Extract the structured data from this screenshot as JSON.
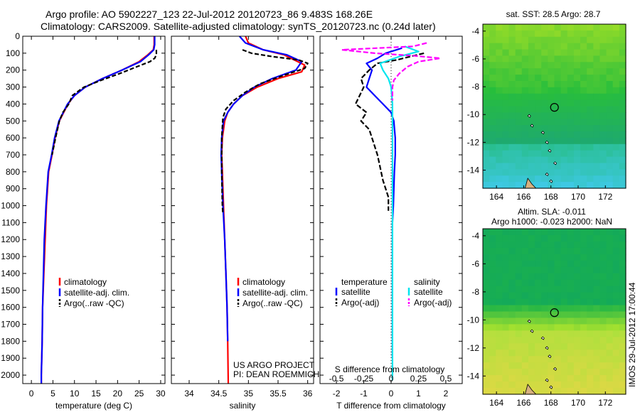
{
  "header": {
    "line1": "Argo profile: AO 5902227_123 22-Jul-2012 20120723_86 9.483S 168.26E",
    "line2": "Climatology: CARS2009. Satellite-adjusted climatology: synTS_20120723.nc (0.24d later)"
  },
  "colors": {
    "climatology": "#ff0000",
    "satellite": "#0000ff",
    "argo": "#000000",
    "sat_salinity": "#00e5ee",
    "argo_salinity": "#ff00ff"
  },
  "depth_axis": {
    "ylim": [
      0,
      2050
    ],
    "ticks": [
      "0",
      "100",
      "200",
      "300",
      "400",
      "500",
      "600",
      "700",
      "800",
      "900",
      "1000",
      "1100",
      "1200",
      "1300",
      "1400",
      "1500",
      "1600",
      "1700",
      "1800",
      "1900",
      "2000"
    ]
  },
  "chart_data": [
    {
      "type": "line",
      "id": "temperature",
      "xlabel": "temperature (deg C)",
      "xlim": [
        -2,
        31
      ],
      "xticks": [
        0,
        5,
        10,
        15,
        20,
        25,
        30
      ],
      "xtick_labels": [
        "0",
        "5",
        "10",
        "15",
        "20",
        "25",
        "30"
      ],
      "ylim": [
        0,
        2050
      ],
      "legend": {
        "placement": "bottom-left",
        "entries": [
          "climatology",
          "satellite-adj. clim.",
          "Argo(..raw -QC)"
        ]
      },
      "series": [
        {
          "name": "climatology",
          "color": "#ff0000",
          "dash": "none",
          "x": [
            28.5,
            28.5,
            28.3,
            27.0,
            25.0,
            21.0,
            16.5,
            12.5,
            10.0,
            8.5,
            7.5,
            6.5,
            5.5,
            4.8,
            4.0,
            3.5,
            3.2,
            2.9,
            2.6,
            2.5,
            2.4,
            2.3,
            2.3,
            2.3
          ],
          "y": [
            0,
            50,
            80,
            110,
            150,
            200,
            250,
            300,
            350,
            400,
            450,
            500,
            600,
            700,
            800,
            1000,
            1200,
            1400,
            1600,
            1800,
            1900,
            2000,
            2050,
            2060
          ]
        },
        {
          "name": "satellite-adj. clim.",
          "color": "#0000ff",
          "dash": "none",
          "x": [
            28.6,
            28.6,
            28.4,
            27.2,
            25.3,
            21.0,
            16.5,
            12.5,
            10.0,
            8.4,
            7.4,
            6.4,
            5.4,
            4.7,
            3.9,
            3.4,
            3.0,
            2.8,
            2.6,
            2.5,
            2.4,
            2.3,
            2.3
          ],
          "y": [
            0,
            50,
            80,
            110,
            150,
            200,
            250,
            300,
            350,
            400,
            450,
            500,
            600,
            700,
            800,
            1000,
            1200,
            1400,
            1600,
            1800,
            1900,
            2000,
            2050
          ]
        },
        {
          "name": "Argo(..raw -QC)",
          "color": "#000000",
          "dash": "6,3",
          "x": [
            29.0,
            29.0,
            28.6,
            27.5,
            24.5,
            20.5,
            16.2,
            12.2,
            9.5,
            8.7,
            7.3,
            6.5,
            5.6,
            4.8
          ],
          "y": [
            80,
            110,
            130,
            150,
            180,
            220,
            260,
            300,
            350,
            400,
            450,
            500,
            600,
            700
          ]
        }
      ]
    },
    {
      "type": "line",
      "id": "salinity",
      "xlabel": "salinity",
      "xlim": [
        33.7,
        36.1
      ],
      "xticks": [
        34,
        34.5,
        35,
        35.5,
        36
      ],
      "xtick_labels": [
        "34",
        "34.5",
        "35",
        "35.5",
        "36"
      ],
      "ylim": [
        0,
        2050
      ],
      "legend": {
        "placement": "bottom-right",
        "entries": [
          "climatology",
          "satellite-adj. clim.",
          "Argo(..raw -QC)"
        ]
      },
      "annotation": [
        "US ARGO PROJECT",
        "PI: DEAN ROEMMICH"
      ],
      "series": [
        {
          "name": "climatology",
          "color": "#ff0000",
          "dash": "none",
          "x": [
            34.95,
            35.0,
            35.25,
            35.6,
            35.95,
            35.9,
            35.5,
            35.15,
            34.9,
            34.75,
            34.65,
            34.6,
            34.56,
            34.55,
            34.56,
            34.58,
            34.6,
            34.62,
            34.64,
            34.65,
            34.66
          ],
          "y": [
            0,
            40,
            80,
            110,
            170,
            210,
            250,
            300,
            350,
            400,
            450,
            500,
            600,
            700,
            800,
            1000,
            1200,
            1400,
            1600,
            1800,
            2050
          ]
        },
        {
          "name": "satellite-adj. clim.",
          "color": "#0000ff",
          "dash": "none",
          "x": [
            34.85,
            34.95,
            35.25,
            35.65,
            35.9,
            35.8,
            35.4,
            35.1,
            34.9,
            34.75,
            34.65,
            34.58,
            34.55,
            34.54,
            34.55,
            34.57,
            34.6,
            34.62,
            34.64,
            34.65
          ],
          "y": [
            0,
            40,
            80,
            110,
            150,
            200,
            250,
            300,
            350,
            400,
            450,
            500,
            600,
            700,
            800,
            1000,
            1200,
            1400,
            1600,
            1800
          ]
        },
        {
          "name": "Argo(..raw -QC)",
          "color": "#000000",
          "dash": "6,3",
          "x": [
            34.9,
            35.05,
            35.4,
            35.85,
            36.0,
            35.95,
            35.6,
            35.2,
            34.95,
            34.75,
            34.62,
            34.57,
            34.55,
            34.55,
            34.56,
            34.57
          ],
          "y": [
            80,
            100,
            120,
            140,
            160,
            190,
            230,
            280,
            330,
            380,
            430,
            480,
            600,
            800,
            1000,
            1050
          ]
        }
      ]
    },
    {
      "type": "line",
      "id": "difference",
      "xlabel": "T difference from climatology",
      "xlabel_top": "S difference from climatology",
      "xlim": [
        -2.6,
        2.6
      ],
      "xticks": [
        -2,
        -1,
        0,
        1,
        2
      ],
      "xtick_labels": [
        "-2",
        "-1",
        "0",
        "1",
        "2"
      ],
      "top_xticks": [
        -0.5,
        -0.25,
        0,
        0.25,
        0.5
      ],
      "top_xtick_labels": [
        "-0.5",
        "-0.25",
        "0",
        "0.25",
        "0.5"
      ],
      "ylim": [
        0,
        2050
      ],
      "legend": {
        "placement": "bottom",
        "headers": [
          "temperature",
          "salinity"
        ],
        "entries": [
          "satellite",
          "Argo(-adj)",
          "satellite",
          "Argo(-adj)"
        ]
      },
      "series": [
        {
          "name": "satellite",
          "group": "temperature",
          "color": "#0000ff",
          "dash": "none",
          "x": [
            0.4,
            -0.2,
            -0.5,
            -0.9,
            -0.7,
            -0.8,
            -0.9,
            -0.6,
            -0.3,
            0.0,
            0.1,
            0.15,
            0.15,
            0.12,
            0.1,
            0.08,
            0.05,
            0.05,
            0.05,
            0.05,
            0.05
          ],
          "y": [
            70,
            100,
            130,
            160,
            200,
            250,
            300,
            350,
            400,
            450,
            500,
            600,
            700,
            800,
            900,
            1000,
            1100,
            1200,
            1400,
            1700,
            1900
          ]
        },
        {
          "name": "Argo(-adj)",
          "group": "temperature",
          "color": "#000000",
          "dash": "7,3",
          "x": [
            1.2,
            0.7,
            0.2,
            -0.5,
            -0.8,
            -1.1,
            -1.0,
            -1.3,
            -0.9,
            -1.1,
            -0.8,
            -0.7,
            -0.5,
            -0.3,
            -0.1,
            -0.1
          ],
          "y": [
            100,
            120,
            140,
            160,
            200,
            250,
            300,
            400,
            450,
            500,
            550,
            600,
            700,
            850,
            950,
            1030
          ]
        },
        {
          "name": "satellite",
          "group": "salinity",
          "color": "#00e5ee",
          "dash": "none",
          "x": [
            0.5,
            1.0,
            0.3,
            -0.4,
            -0.3,
            -0.1,
            0.0,
            0.05,
            0.05,
            0.05,
            0.05,
            0.05,
            0.05,
            0.05
          ],
          "y": [
            60,
            90,
            120,
            160,
            200,
            250,
            300,
            400,
            500,
            600,
            800,
            1200,
            1600,
            2030
          ]
        },
        {
          "name": "Argo(-adj)",
          "group": "salinity",
          "color": "#ff00ff",
          "dash": "7,3",
          "x": [
            1.3,
            0.8,
            -1.8,
            -0.6,
            0.8,
            1.8,
            1.0,
            0.6,
            0.3,
            0.1,
            0.05,
            0.05
          ],
          "y": [
            40,
            60,
            80,
            100,
            115,
            130,
            150,
            180,
            220,
            260,
            300,
            380
          ]
        }
      ]
    }
  ],
  "maps": [
    {
      "id": "sst",
      "title": "sat. SST: 28.5 Argo: 28.7",
      "xtick_labels": [
        "164",
        "166",
        "168",
        "170",
        "172"
      ],
      "ytick_labels": [
        "-4",
        "-6",
        "-8",
        "-10",
        "-12",
        "-14"
      ],
      "ylim": [
        -15.3,
        -3.5
      ],
      "xlim": [
        163,
        173.5
      ],
      "argo_location": [
        168.26,
        -9.483
      ]
    },
    {
      "id": "sla",
      "title_lines": [
        "Altim. SLA: -0.011",
        "Argo h1000: -0.023 h2000: NaN"
      ],
      "xtick_labels": [
        "164",
        "166",
        "168",
        "170",
        "172"
      ],
      "ytick_labels": [
        "-4",
        "-6",
        "-8",
        "-10",
        "-12",
        "-14"
      ],
      "ylim": [
        -15.3,
        -3.5
      ],
      "xlim": [
        163,
        173.5
      ],
      "argo_location": [
        168.26,
        -9.483
      ]
    }
  ],
  "footer": {
    "stamp": "IMOS 29-Jul-2012 17:00:44"
  }
}
